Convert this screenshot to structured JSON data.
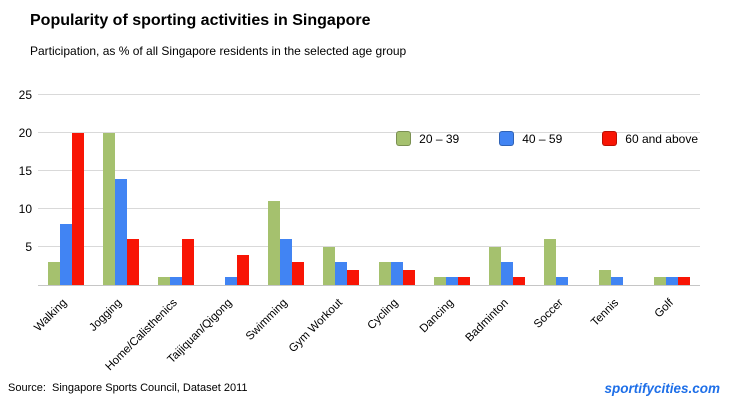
{
  "header": {
    "title": "Popularity of sporting activities in Singapore",
    "subtitle": "Participation, as % of all Singapore residents in the selected age group"
  },
  "chart_data": {
    "type": "bar",
    "title": "Popularity of sporting activities in Singapore",
    "subtitle": "Participation, as % of all Singapore residents in the selected age group",
    "categories": [
      "Walking",
      "Jogging",
      "Home/Calisthenics",
      "Taijiquan/Qigong",
      "Swimming",
      "Gym Workout",
      "Cycling",
      "Dancing",
      "Badminton",
      "Soccer",
      "Tennis",
      "Golf"
    ],
    "series": [
      {
        "name": "20 – 39",
        "color": "#a5c16e",
        "values": [
          3,
          20,
          1,
          0,
          11,
          5,
          3,
          1,
          5,
          6,
          2,
          1
        ]
      },
      {
        "name": "40 – 59",
        "color": "#4184f3",
        "values": [
          8,
          14,
          1,
          1,
          6,
          3,
          3,
          1,
          3,
          1,
          1,
          1
        ]
      },
      {
        "name": "60 and above",
        "color": "#f81505",
        "values": [
          20,
          6,
          6,
          4,
          3,
          2,
          2,
          1,
          1,
          0,
          0,
          1
        ]
      }
    ],
    "xlabel": "",
    "ylabel": "",
    "ylim": [
      0,
      25
    ],
    "yticks": [
      5,
      10,
      15,
      20,
      25
    ],
    "grid": "horizontal",
    "legend_position": "top-right"
  },
  "footer": {
    "source": "Source:  Singapore Sports Council, Dataset 2011",
    "brand": "sportifycities.com",
    "brand_color": "#1e6fe8"
  }
}
